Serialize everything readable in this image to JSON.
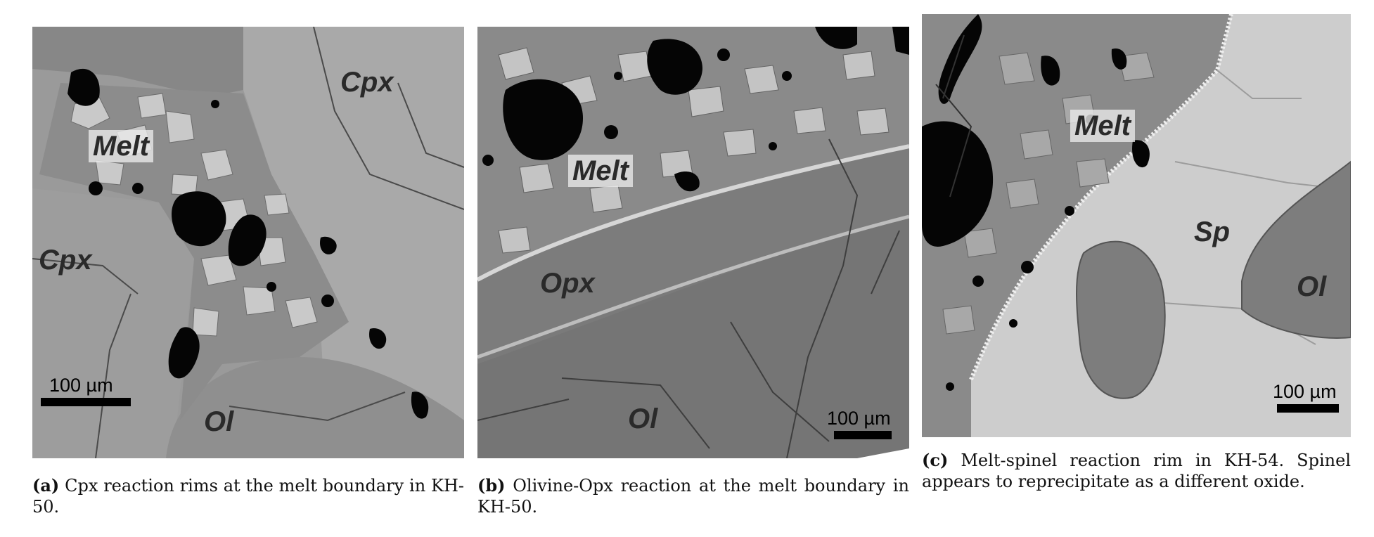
{
  "panels": [
    {
      "labels": [
        "Melt",
        "Cpx",
        "Cpx",
        "Ol"
      ],
      "scale_bar": "100 µm",
      "caption_tag": "(a)",
      "caption_text": "Cpx reaction rims at the melt boundary in KH-50."
    },
    {
      "labels": [
        "Melt",
        "Opx",
        "Ol"
      ],
      "scale_bar": "100 µm",
      "caption_tag": "(b)",
      "caption_text": "Olivine-Opx reaction at the melt boundary in KH-50."
    },
    {
      "labels": [
        "Melt",
        "Sp",
        "Ol"
      ],
      "scale_bar": "100 µm",
      "caption_tag": "(c)",
      "caption_text": "Melt-spinel reaction rim in KH-54. Spinel appears to reprecipitate as a different oxide."
    }
  ]
}
